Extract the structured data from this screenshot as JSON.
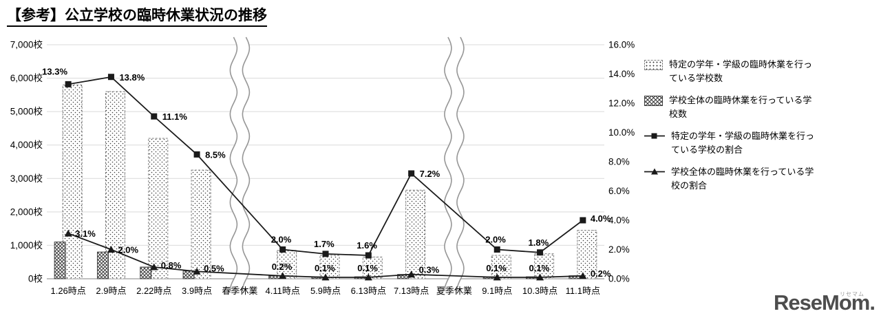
{
  "title": "【参考】公立学校の臨時休業状況の推移",
  "chart_data": {
    "type": "combo-bar-line",
    "title": "【参考】公立学校の臨時休業状況の推移",
    "categories": [
      "1.26時点",
      "2.9時点",
      "2.22時点",
      "3.9時点",
      "春季休業",
      "4.11時点",
      "5.9時点",
      "6.13時点",
      "7.13時点",
      "夏季休業",
      "9.1時点",
      "10.3時点",
      "11.1時点"
    ],
    "break_categories": [
      "春季休業",
      "夏季休業"
    ],
    "left_axis": {
      "unit": "校",
      "min": 0,
      "max": 7000,
      "ticks": [
        "0校",
        "1,000校",
        "2,000校",
        "3,000校",
        "4,000校",
        "5,000校",
        "6,000校",
        "7,000校"
      ]
    },
    "right_axis": {
      "unit": "%",
      "min": 0,
      "max": 16,
      "ticks": [
        "0.0%",
        "2.0%",
        "4.0%",
        "6.0%",
        "8.0%",
        "10.0%",
        "12.0%",
        "14.0%",
        "16.0%"
      ]
    },
    "series": [
      {
        "name": "特定の学年・学級の臨時休業を行っている学校数",
        "type": "bar",
        "pattern": "dotted",
        "axis": "left",
        "values": [
          5800,
          5600,
          4200,
          3250,
          null,
          850,
          700,
          650,
          2650,
          null,
          700,
          750,
          1450
        ]
      },
      {
        "name": "学校全体の臨時休業を行っている学校数",
        "type": "bar",
        "pattern": "crosshatch",
        "axis": "left",
        "values": [
          1100,
          800,
          350,
          230,
          null,
          90,
          60,
          60,
          130,
          null,
          60,
          60,
          90
        ]
      },
      {
        "name": "特定の学年・学級の臨時休業を行っている学校の割合",
        "type": "line",
        "marker": "square",
        "axis": "right",
        "values": [
          13.3,
          13.8,
          11.1,
          8.5,
          null,
          2.0,
          1.7,
          1.6,
          7.2,
          null,
          2.0,
          1.8,
          4.0
        ],
        "labels": [
          "13.3%",
          "13.8%",
          "11.1%",
          "8.5%",
          null,
          "2.0%",
          "1.7%",
          "1.6%",
          "7.2%",
          null,
          "2.0%",
          "1.8%",
          "4.0%"
        ]
      },
      {
        "name": "学校全体の臨時休業を行っている学校の割合",
        "type": "line",
        "marker": "triangle",
        "axis": "right",
        "values": [
          3.1,
          2.0,
          0.8,
          0.5,
          null,
          0.2,
          0.1,
          0.1,
          0.3,
          null,
          0.1,
          0.1,
          0.2
        ],
        "labels": [
          "3.1%",
          "2.0%",
          "0.8%",
          "0.5%",
          null,
          "0.2%",
          "0.1%",
          "0.1%",
          "0.3%",
          null,
          "0.1%",
          "0.1%",
          "0.2%"
        ]
      }
    ],
    "grid": "horizontal",
    "legend_position": "right"
  },
  "logo": {
    "text": "ReseMom",
    "dot": ".",
    "kana": "リセマム"
  }
}
